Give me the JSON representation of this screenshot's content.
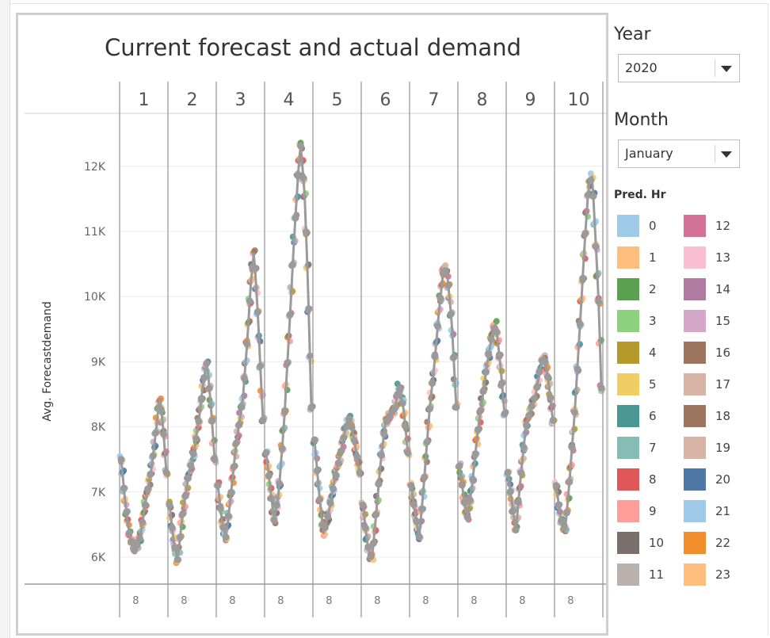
{
  "filters": {
    "year": {
      "label": "Year",
      "value": "2020"
    },
    "month": {
      "label": "Month",
      "value": "January"
    }
  },
  "legend": {
    "title": "Pred. Hr",
    "items": [
      {
        "label": "0",
        "color": "#a0cbe8"
      },
      {
        "label": "12",
        "color": "#d37295"
      },
      {
        "label": "1",
        "color": "#ffbe7d"
      },
      {
        "label": "13",
        "color": "#fabfd2"
      },
      {
        "label": "2",
        "color": "#59a14f"
      },
      {
        "label": "14",
        "color": "#b07aa1"
      },
      {
        "label": "3",
        "color": "#8cd17d"
      },
      {
        "label": "15",
        "color": "#d4a6c8"
      },
      {
        "label": "4",
        "color": "#b6992d"
      },
      {
        "label": "16",
        "color": "#9d7660"
      },
      {
        "label": "5",
        "color": "#f1ce63"
      },
      {
        "label": "17",
        "color": "#d7b5a6"
      },
      {
        "label": "6",
        "color": "#499894"
      },
      {
        "label": "18",
        "color": "#9d7660"
      },
      {
        "label": "7",
        "color": "#86bcb6"
      },
      {
        "label": "19",
        "color": "#d7b5a6"
      },
      {
        "label": "8",
        "color": "#e15759"
      },
      {
        "label": "20",
        "color": "#4e79a7"
      },
      {
        "label": "9",
        "color": "#ff9d9a"
      },
      {
        "label": "21",
        "color": "#a0cbe8"
      },
      {
        "label": "10",
        "color": "#79706e"
      },
      {
        "label": "22",
        "color": "#f28e2b"
      },
      {
        "label": "11",
        "color": "#bab0ac"
      },
      {
        "label": "23",
        "color": "#ffbe7d"
      }
    ]
  },
  "chart_data": {
    "type": "line",
    "title": "Current forecast and actual demand",
    "ylabel": "Avg. Forecastdemand",
    "ylim": [
      5800,
      12700
    ],
    "yticks": [
      6000,
      7000,
      8000,
      9000,
      10000,
      11000,
      12000
    ],
    "ytick_labels": [
      "6K",
      "7K",
      "8K",
      "9K",
      "10K",
      "11K",
      "12K"
    ],
    "grid": true,
    "legend_position": "right",
    "columns": [
      {
        "label": "1",
        "bottom": "8",
        "points": [
          [
            0,
            7500
          ],
          [
            0.08,
            6900
          ],
          [
            0.18,
            6350
          ],
          [
            0.3,
            6100
          ],
          [
            0.42,
            6300
          ],
          [
            0.55,
            6900
          ],
          [
            0.68,
            7400
          ],
          [
            0.78,
            8000
          ],
          [
            0.85,
            8450
          ],
          [
            0.93,
            8000
          ],
          [
            1.0,
            7300
          ]
        ]
      },
      {
        "label": "2",
        "bottom": "8",
        "points": [
          [
            0,
            6800
          ],
          [
            0.1,
            6200
          ],
          [
            0.18,
            5950
          ],
          [
            0.28,
            6600
          ],
          [
            0.42,
            7250
          ],
          [
            0.55,
            7650
          ],
          [
            0.65,
            8100
          ],
          [
            0.75,
            8700
          ],
          [
            0.83,
            9000
          ],
          [
            0.92,
            8300
          ],
          [
            1.0,
            7500
          ]
        ]
      },
      {
        "label": "3",
        "bottom": "8",
        "points": [
          [
            0,
            7100
          ],
          [
            0.1,
            6500
          ],
          [
            0.18,
            6300
          ],
          [
            0.28,
            6900
          ],
          [
            0.4,
            7700
          ],
          [
            0.55,
            8400
          ],
          [
            0.65,
            9300
          ],
          [
            0.73,
            10200
          ],
          [
            0.8,
            10700
          ],
          [
            0.88,
            9800
          ],
          [
            1.0,
            8100
          ]
        ]
      },
      {
        "label": "4",
        "bottom": "8",
        "points": [
          [
            0,
            7600
          ],
          [
            0.1,
            7000
          ],
          [
            0.18,
            6550
          ],
          [
            0.28,
            7000
          ],
          [
            0.4,
            8100
          ],
          [
            0.52,
            9600
          ],
          [
            0.62,
            10900
          ],
          [
            0.7,
            11800
          ],
          [
            0.76,
            12350
          ],
          [
            0.85,
            11600
          ],
          [
            0.93,
            10100
          ],
          [
            1.0,
            8300
          ]
        ]
      },
      {
        "label": "5",
        "bottom": "8",
        "points": [
          [
            0,
            7800
          ],
          [
            0.1,
            7000
          ],
          [
            0.2,
            6350
          ],
          [
            0.32,
            6700
          ],
          [
            0.45,
            7200
          ],
          [
            0.58,
            7600
          ],
          [
            0.68,
            7950
          ],
          [
            0.78,
            8150
          ],
          [
            0.88,
            7800
          ],
          [
            1.0,
            7300
          ]
        ]
      },
      {
        "label": "6",
        "bottom": "8",
        "points": [
          [
            0,
            6800
          ],
          [
            0.1,
            6200
          ],
          [
            0.2,
            5950
          ],
          [
            0.3,
            6700
          ],
          [
            0.4,
            7500
          ],
          [
            0.5,
            8050
          ],
          [
            0.62,
            8200
          ],
          [
            0.72,
            8300
          ],
          [
            0.8,
            8650
          ],
          [
            0.9,
            8300
          ],
          [
            1.0,
            7600
          ]
        ]
      },
      {
        "label": "7",
        "bottom": "8",
        "points": [
          [
            0,
            7100
          ],
          [
            0.08,
            6700
          ],
          [
            0.18,
            6300
          ],
          [
            0.28,
            7100
          ],
          [
            0.4,
            8200
          ],
          [
            0.52,
            9000
          ],
          [
            0.62,
            9800
          ],
          [
            0.72,
            10450
          ],
          [
            0.8,
            10350
          ],
          [
            0.9,
            9600
          ],
          [
            1.0,
            8300
          ]
        ]
      },
      {
        "label": "8",
        "bottom": "8",
        "points": [
          [
            0,
            7400
          ],
          [
            0.1,
            6900
          ],
          [
            0.18,
            6600
          ],
          [
            0.28,
            7100
          ],
          [
            0.4,
            7900
          ],
          [
            0.52,
            8500
          ],
          [
            0.62,
            9000
          ],
          [
            0.72,
            9400
          ],
          [
            0.8,
            9600
          ],
          [
            0.9,
            9000
          ],
          [
            1.0,
            8200
          ]
        ]
      },
      {
        "label": "9",
        "bottom": "8",
        "points": [
          [
            0,
            7300
          ],
          [
            0.1,
            6800
          ],
          [
            0.18,
            6400
          ],
          [
            0.28,
            7200
          ],
          [
            0.4,
            8000
          ],
          [
            0.52,
            8300
          ],
          [
            0.62,
            8500
          ],
          [
            0.72,
            8900
          ],
          [
            0.8,
            9100
          ],
          [
            0.9,
            8700
          ],
          [
            1.0,
            8100
          ]
        ]
      },
      {
        "label": "10",
        "bottom": "8",
        "points": [
          [
            0,
            7100
          ],
          [
            0.1,
            6600
          ],
          [
            0.2,
            6400
          ],
          [
            0.3,
            7200
          ],
          [
            0.42,
            8300
          ],
          [
            0.54,
            9700
          ],
          [
            0.64,
            10900
          ],
          [
            0.72,
            11700
          ],
          [
            0.8,
            11850
          ],
          [
            0.88,
            10800
          ],
          [
            0.95,
            9800
          ],
          [
            1.0,
            8600
          ]
        ]
      }
    ]
  }
}
